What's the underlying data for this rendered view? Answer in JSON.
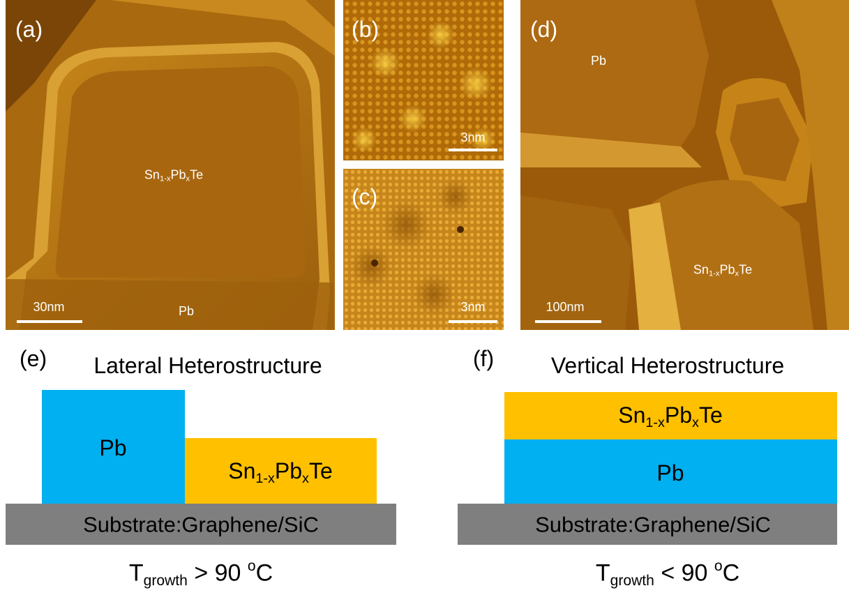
{
  "panels": {
    "a": {
      "label": "(a)",
      "formula": [
        {
          "text": "Sn"
        },
        {
          "sub": "1-x"
        },
        {
          "text": "Pb"
        },
        {
          "sub": "x"
        },
        {
          "text": "Te"
        }
      ],
      "pb": "Pb",
      "scale": "30nm"
    },
    "b": {
      "label": "(b)",
      "scale": "3nm"
    },
    "c": {
      "label": "(c)",
      "scale": "3nm"
    },
    "d": {
      "label": "(d)",
      "pb": "Pb",
      "formula": [
        {
          "text": "Sn"
        },
        {
          "sub": "1-x"
        },
        {
          "text": "Pb"
        },
        {
          "sub": "x"
        },
        {
          "text": "Te"
        }
      ],
      "scale": "100nm"
    }
  },
  "lateral": {
    "label": "(e)",
    "title": "Lateral Heterostructure",
    "pb": "Pb",
    "formula": [
      {
        "text": "Sn"
      },
      {
        "sub": "1-x"
      },
      {
        "text": "Pb"
      },
      {
        "sub": "x"
      },
      {
        "text": "Te"
      }
    ],
    "substrate": "Substrate:Graphene/SiC",
    "condition": [
      {
        "text": "T"
      },
      {
        "sub": "growth"
      },
      {
        "text": " > 90 "
      },
      {
        "sup": "o"
      },
      {
        "text": "C"
      }
    ]
  },
  "vertical": {
    "label": "(f)",
    "title": "Vertical Heterostructure",
    "formula": [
      {
        "text": "Sn"
      },
      {
        "sub": "1-x"
      },
      {
        "text": "Pb"
      },
      {
        "sub": "x"
      },
      {
        "text": "Te"
      }
    ],
    "pb": "Pb",
    "substrate": "Substrate:Graphene/SiC",
    "condition": [
      {
        "text": "T"
      },
      {
        "sub": "growth"
      },
      {
        "text": " < 90 "
      },
      {
        "sup": "o"
      },
      {
        "text": "C"
      }
    ]
  }
}
